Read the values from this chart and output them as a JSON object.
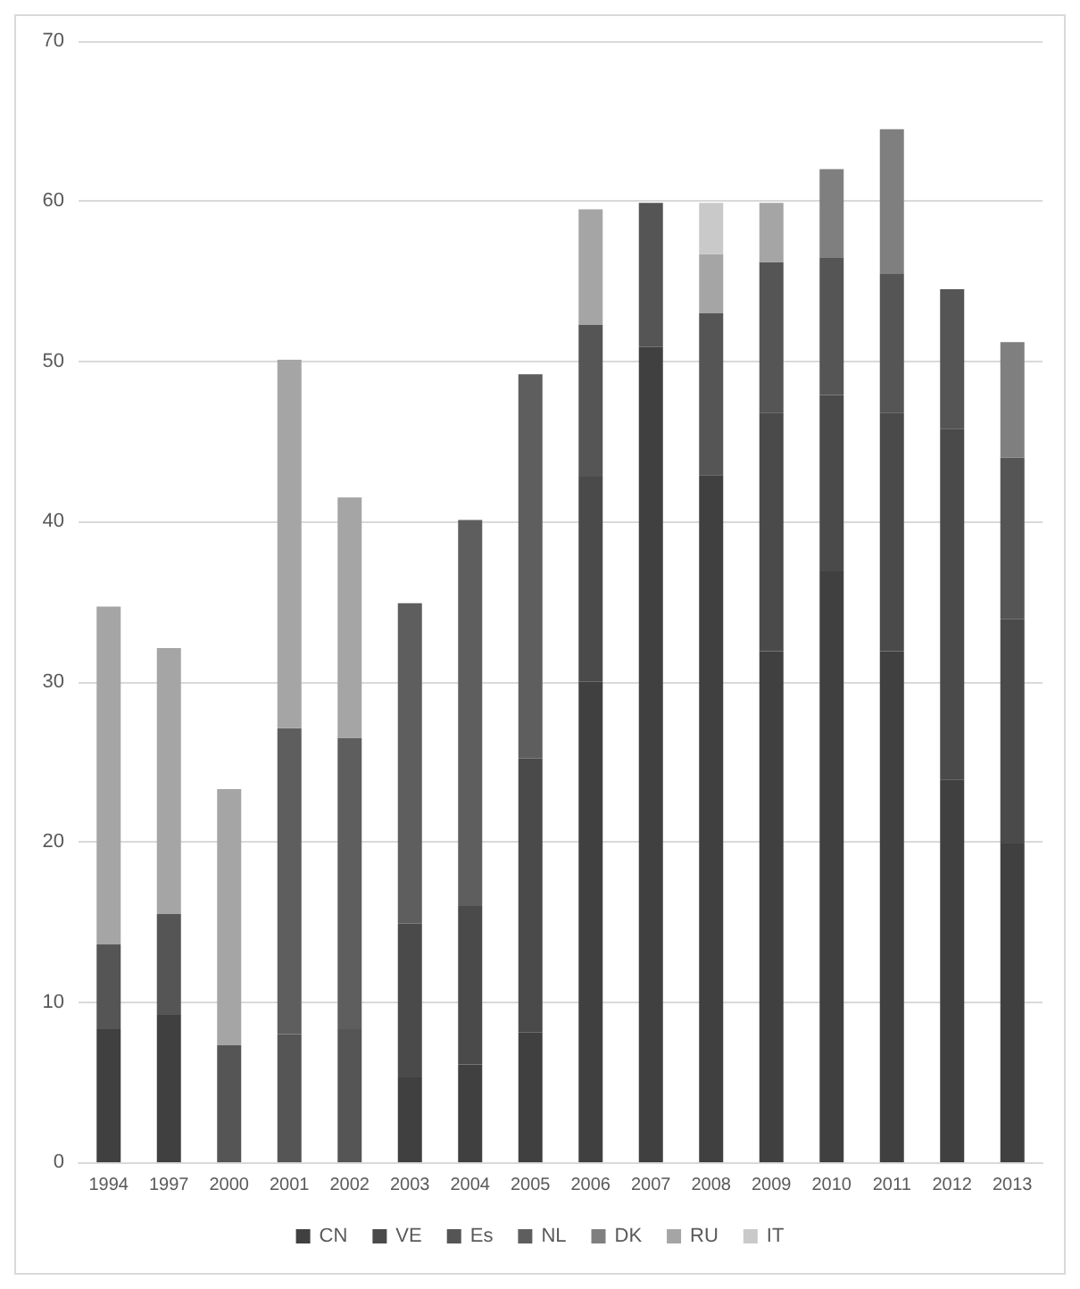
{
  "chart_data": {
    "type": "bar",
    "stacked": true,
    "categories": [
      "1994",
      "1997",
      "2000",
      "2001",
      "2002",
      "2003",
      "2004",
      "2005",
      "2006",
      "2007",
      "2008",
      "2009",
      "2010",
      "2011",
      "2012",
      "2013"
    ],
    "series": [
      {
        "name": "CN",
        "color": "#404040",
        "values": [
          8.3,
          9.2,
          null,
          null,
          null,
          5.3,
          6.1,
          8.1,
          30.0,
          50.9,
          42.9,
          31.9,
          36.9,
          31.9,
          23.9,
          19.9
        ]
      },
      {
        "name": "VE",
        "color": "#4a4a4a",
        "values": [
          null,
          null,
          null,
          null,
          null,
          9.6,
          9.9,
          17.1,
          12.8,
          null,
          null,
          14.9,
          11.0,
          14.9,
          21.9,
          14.0
        ]
      },
      {
        "name": "Es",
        "color": "#555555",
        "values": [
          5.3,
          6.3,
          7.3,
          8.0,
          8.3,
          null,
          null,
          null,
          9.5,
          9.0,
          10.1,
          9.4,
          8.6,
          8.7,
          8.7,
          10.1
        ]
      },
      {
        "name": "NL",
        "color": "#5e5e5e",
        "values": [
          null,
          null,
          null,
          19.1,
          18.2,
          20.0,
          24.1,
          24.0,
          null,
          null,
          null,
          null,
          null,
          null,
          null,
          null
        ]
      },
      {
        "name": "DK",
        "color": "#7f7f7f",
        "values": [
          null,
          null,
          null,
          null,
          null,
          null,
          null,
          null,
          null,
          null,
          null,
          null,
          5.5,
          9.0,
          null,
          7.2
        ]
      },
      {
        "name": "RU",
        "color": "#a5a5a5",
        "values": [
          21.1,
          16.6,
          16.0,
          23.0,
          15.0,
          null,
          null,
          null,
          7.2,
          null,
          3.7,
          3.7,
          null,
          null,
          null,
          null
        ]
      },
      {
        "name": "IT",
        "color": "#c9c9c9",
        "values": [
          null,
          null,
          null,
          null,
          null,
          null,
          null,
          null,
          null,
          null,
          3.2,
          null,
          null,
          null,
          null,
          null
        ]
      }
    ],
    "ylim": [
      0,
      70
    ],
    "yticks": [
      0,
      10,
      20,
      30,
      40,
      50,
      60,
      70
    ],
    "grid": "y",
    "legend": "bottom"
  }
}
